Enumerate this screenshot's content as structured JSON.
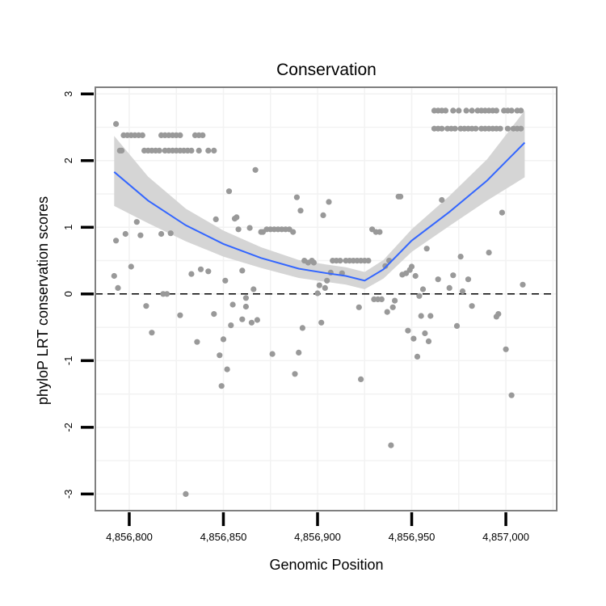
{
  "chart_data": {
    "type": "scatter",
    "title": "Conservation",
    "xlabel": "Genomic Position",
    "ylabel": "phyloP LRT conservation scores",
    "xlim": [
      4856782,
      4857027
    ],
    "ylim": [
      -3.25,
      3.1
    ],
    "x_ticks": [
      4856800,
      4856850,
      4856900,
      4856950,
      4857000
    ],
    "x_tick_labels": [
      "4,856,800",
      "4,856,850",
      "4,856,900",
      "4,856,950",
      "4,857,000"
    ],
    "y_ticks": [
      3,
      2,
      1,
      0,
      -1,
      -2,
      -3
    ],
    "y_tick_labels": [
      "3",
      "2",
      "1",
      "0",
      "-1",
      "-2",
      "-3"
    ],
    "reference_line": {
      "y": 0,
      "style": "dashed"
    },
    "colors": {
      "points": "#999999",
      "smooth": "#3366ff",
      "ribbon": "#d3d3d3",
      "panel_border": "#7f7f7f",
      "grid": "#f2f2f2"
    },
    "points": [
      [
        4856793,
        2.55
      ],
      [
        4856795,
        2.15
      ],
      [
        4856796,
        2.15
      ],
      [
        4856797,
        2.38
      ],
      [
        4856799,
        2.38
      ],
      [
        4856801,
        2.38
      ],
      [
        4856803,
        2.38
      ],
      [
        4856805,
        2.38
      ],
      [
        4856807,
        2.38
      ],
      [
        4856808,
        2.15
      ],
      [
        4856810,
        2.15
      ],
      [
        4856812,
        2.15
      ],
      [
        4856814,
        2.15
      ],
      [
        4856816,
        2.15
      ],
      [
        4856817,
        2.38
      ],
      [
        4856819,
        2.38
      ],
      [
        4856821,
        2.38
      ],
      [
        4856823,
        2.38
      ],
      [
        4856819,
        2.15
      ],
      [
        4856821,
        2.15
      ],
      [
        4856823,
        2.15
      ],
      [
        4856825,
        2.15
      ],
      [
        4856827,
        2.15
      ],
      [
        4856829,
        2.15
      ],
      [
        4856831,
        2.15
      ],
      [
        4856833,
        2.15
      ],
      [
        4856825,
        2.38
      ],
      [
        4856827,
        2.38
      ],
      [
        4856835,
        2.38
      ],
      [
        4856837,
        2.38
      ],
      [
        4856839,
        2.38
      ],
      [
        4856837,
        2.15
      ],
      [
        4856842,
        2.15
      ],
      [
        4856845,
        2.15
      ],
      [
        4856792,
        0.27
      ],
      [
        4856793,
        0.8
      ],
      [
        4856794,
        0.09
      ],
      [
        4856798,
        0.9
      ],
      [
        4856801,
        0.41
      ],
      [
        4856804,
        1.08
      ],
      [
        4856806,
        0.88
      ],
      [
        4856809,
        -0.18
      ],
      [
        4856812,
        -0.58
      ],
      [
        4856817,
        0.9
      ],
      [
        4856818,
        0.0
      ],
      [
        4856820,
        0.0
      ],
      [
        4856822,
        0.91
      ],
      [
        4856827,
        -0.32
      ],
      [
        4856830,
        -3.0
      ],
      [
        4856833,
        0.3
      ],
      [
        4856836,
        -0.72
      ],
      [
        4856838,
        0.37
      ],
      [
        4856842,
        0.34
      ],
      [
        4856845,
        -0.3
      ],
      [
        4856846,
        1.12
      ],
      [
        4856848,
        -0.92
      ],
      [
        4856849,
        -1.38
      ],
      [
        4856850,
        -0.68
      ],
      [
        4856851,
        0.2
      ],
      [
        4856852,
        -1.13
      ],
      [
        4856853,
        1.54
      ],
      [
        4856854,
        -0.47
      ],
      [
        4856855,
        -0.16
      ],
      [
        4856856,
        1.13
      ],
      [
        4856857,
        1.15
      ],
      [
        4856858,
        0.97
      ],
      [
        4856860,
        0.35
      ],
      [
        4856860,
        -0.38
      ],
      [
        4856862,
        -0.06
      ],
      [
        4856862,
        -0.19
      ],
      [
        4856864,
        0.99
      ],
      [
        4856865,
        -0.43
      ],
      [
        4856866,
        0.07
      ],
      [
        4856867,
        1.86
      ],
      [
        4856868,
        -0.39
      ],
      [
        4856870,
        0.93
      ],
      [
        4856871,
        0.93
      ],
      [
        4856873,
        0.97
      ],
      [
        4856875,
        0.97
      ],
      [
        4856876,
        -0.9
      ],
      [
        4856877,
        0.97
      ],
      [
        4856879,
        0.97
      ],
      [
        4856881,
        0.97
      ],
      [
        4856883,
        0.97
      ],
      [
        4856885,
        0.97
      ],
      [
        4856887,
        0.93
      ],
      [
        4856888,
        -1.2
      ],
      [
        4856889,
        1.45
      ],
      [
        4856890,
        -0.88
      ],
      [
        4856891,
        1.25
      ],
      [
        4856892,
        -0.51
      ],
      [
        4856893,
        0.5
      ],
      [
        4856895,
        0.47
      ],
      [
        4856897,
        0.5
      ],
      [
        4856898,
        0.47
      ],
      [
        4856900,
        0.01
      ],
      [
        4856901,
        0.13
      ],
      [
        4856902,
        -0.43
      ],
      [
        4856903,
        1.18
      ],
      [
        4856904,
        0.09
      ],
      [
        4856905,
        0.2
      ],
      [
        4856906,
        1.38
      ],
      [
        4856907,
        0.32
      ],
      [
        4856908,
        0.5
      ],
      [
        4856910,
        0.5
      ],
      [
        4856912,
        0.5
      ],
      [
        4856913,
        0.31
      ],
      [
        4856915,
        0.5
      ],
      [
        4856917,
        0.5
      ],
      [
        4856919,
        0.5
      ],
      [
        4856921,
        0.5
      ],
      [
        4856923,
        0.5
      ],
      [
        4856922,
        -0.2
      ],
      [
        4856923,
        -1.28
      ],
      [
        4856925,
        0.5
      ],
      [
        4856927,
        0.5
      ],
      [
        4856929,
        0.97
      ],
      [
        4856931,
        0.93
      ],
      [
        4856933,
        0.93
      ],
      [
        4856930,
        -0.08
      ],
      [
        4856932,
        -0.08
      ],
      [
        4856934,
        -0.08
      ],
      [
        4856936,
        0.42
      ],
      [
        4856937,
        -0.27
      ],
      [
        4856938,
        0.5
      ],
      [
        4856939,
        -2.27
      ],
      [
        4856940,
        -0.2
      ],
      [
        4856941,
        -0.1
      ],
      [
        4856943,
        1.46
      ],
      [
        4856944,
        1.46
      ],
      [
        4856945,
        0.29
      ],
      [
        4856947,
        0.31
      ],
      [
        4856948,
        -0.55
      ],
      [
        4856949,
        0.36
      ],
      [
        4856950,
        0.41
      ],
      [
        4856951,
        -0.67
      ],
      [
        4856952,
        0.27
      ],
      [
        4856953,
        -0.94
      ],
      [
        4856954,
        -0.03
      ],
      [
        4856955,
        -0.33
      ],
      [
        4856956,
        0.07
      ],
      [
        4856957,
        -0.59
      ],
      [
        4856958,
        0.68
      ],
      [
        4856959,
        -0.71
      ],
      [
        4856960,
        -0.33
      ],
      [
        4856964,
        0.22
      ],
      [
        4856966,
        1.41
      ],
      [
        4856970,
        0.09
      ],
      [
        4856972,
        0.28
      ],
      [
        4856974,
        -0.48
      ],
      [
        4856976,
        0.56
      ],
      [
        4856977,
        0.04
      ],
      [
        4856980,
        0.22
      ],
      [
        4856982,
        -0.18
      ],
      [
        4856991,
        0.62
      ],
      [
        4856995,
        -0.34
      ],
      [
        4856996,
        -0.3
      ],
      [
        4856998,
        1.22
      ],
      [
        4857000,
        -0.83
      ],
      [
        4857003,
        -1.52
      ],
      [
        4857009,
        0.14
      ],
      [
        4856962,
        2.75
      ],
      [
        4856964,
        2.75
      ],
      [
        4856966,
        2.75
      ],
      [
        4856968,
        2.75
      ],
      [
        4856972,
        2.75
      ],
      [
        4856975,
        2.75
      ],
      [
        4856979,
        2.75
      ],
      [
        4856982,
        2.75
      ],
      [
        4856985,
        2.75
      ],
      [
        4856987,
        2.75
      ],
      [
        4856989,
        2.75
      ],
      [
        4856991,
        2.75
      ],
      [
        4856993,
        2.75
      ],
      [
        4856995,
        2.75
      ],
      [
        4856999,
        2.75
      ],
      [
        4857001,
        2.75
      ],
      [
        4857003,
        2.75
      ],
      [
        4857006,
        2.75
      ],
      [
        4857008,
        2.75
      ],
      [
        4856962,
        2.48
      ],
      [
        4856964,
        2.48
      ],
      [
        4856966,
        2.48
      ],
      [
        4856969,
        2.48
      ],
      [
        4856971,
        2.48
      ],
      [
        4856973,
        2.48
      ],
      [
        4856976,
        2.48
      ],
      [
        4856978,
        2.48
      ],
      [
        4856980,
        2.48
      ],
      [
        4856982,
        2.48
      ],
      [
        4856984,
        2.48
      ],
      [
        4856987,
        2.48
      ],
      [
        4856989,
        2.48
      ],
      [
        4856991,
        2.48
      ],
      [
        4856993,
        2.48
      ],
      [
        4856995,
        2.48
      ],
      [
        4856997,
        2.48
      ],
      [
        4857001,
        2.48
      ],
      [
        4857004,
        2.48
      ],
      [
        4857006,
        2.48
      ],
      [
        4857008,
        2.48
      ]
    ],
    "smooth": {
      "x": [
        4856792,
        4856810,
        4856830,
        4856850,
        4856870,
        4856890,
        4856905,
        4856915,
        4856925,
        4856935,
        4856950,
        4856970,
        4856990,
        4857010
      ],
      "fit": [
        1.83,
        1.4,
        1.03,
        0.75,
        0.54,
        0.38,
        0.31,
        0.27,
        0.2,
        0.37,
        0.8,
        1.23,
        1.7,
        2.27
      ],
      "lower": [
        1.32,
        1.06,
        0.79,
        0.56,
        0.39,
        0.24,
        0.18,
        0.14,
        0.07,
        0.23,
        0.63,
        1.02,
        1.4,
        1.75
      ],
      "upper": [
        2.37,
        1.76,
        1.28,
        0.95,
        0.7,
        0.51,
        0.44,
        0.4,
        0.33,
        0.51,
        0.97,
        1.47,
        2.02,
        2.75
      ]
    }
  }
}
